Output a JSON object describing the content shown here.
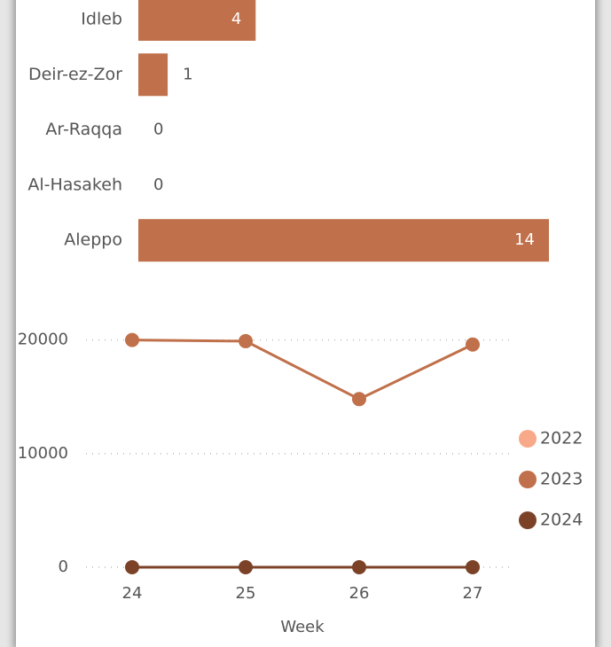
{
  "chart_data": [
    {
      "type": "hbar",
      "categories": [
        "Idleb",
        "Deir-ez-Zor",
        "Ar-Raqqa",
        "Al-Hasakeh",
        "Aleppo"
      ],
      "values": [
        4,
        1,
        0,
        0,
        14
      ],
      "color": "#c0704a"
    },
    {
      "type": "line",
      "xlabel": "Week",
      "categories": [
        "24",
        "25",
        "26",
        "27"
      ],
      "series": [
        {
          "name": "2022",
          "color": "#f7a98a",
          "values": [
            null,
            null,
            null,
            null
          ]
        },
        {
          "name": "2023",
          "color": "#c0704a",
          "values": [
            20000,
            19900,
            14800,
            19600
          ]
        },
        {
          "name": "2024",
          "color": "#7b4228",
          "values": [
            0,
            0,
            0,
            0
          ]
        }
      ],
      "ylim": [
        0,
        22000
      ],
      "yticks": [
        0,
        10000,
        20000
      ],
      "grid": true,
      "legend": "right"
    }
  ]
}
